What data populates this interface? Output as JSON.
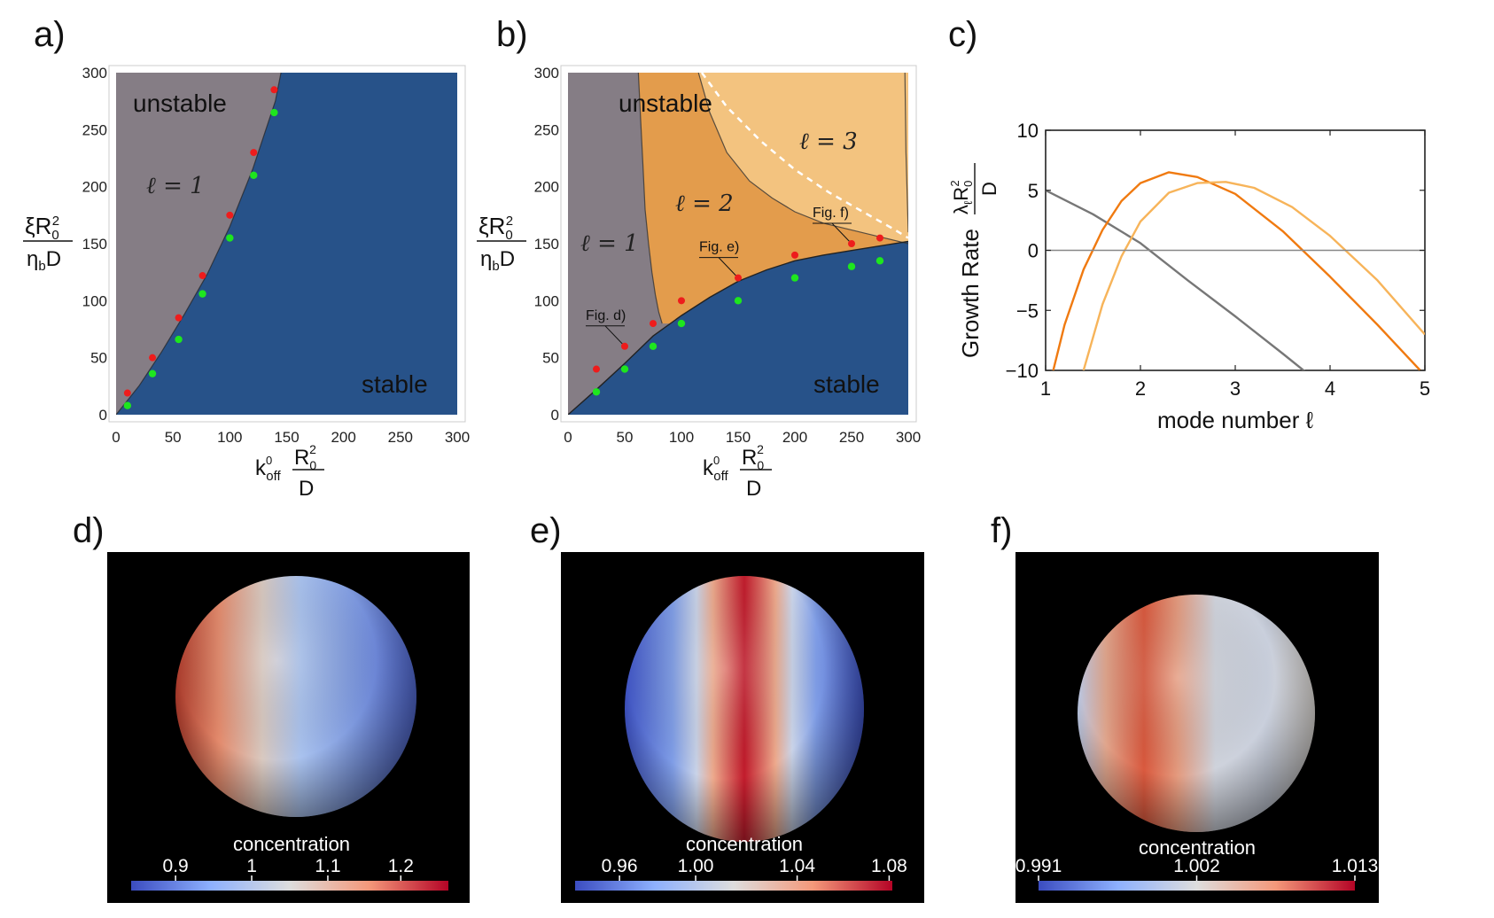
{
  "panels": {
    "a": "a)",
    "b": "b)",
    "c": "c)",
    "d": "d)",
    "e": "e)",
    "f": "f)"
  },
  "colors": {
    "unstable_l1": "#857d85",
    "unstable_l2": "#e39c4c",
    "unstable_l3": "#f3c37f",
    "stable": "#275289",
    "red_marker": "#ee1c1c",
    "green_marker": "#1ee61e",
    "l1_curve": "#777777",
    "l2_curve": "#f07a10",
    "l3_curve": "#f7b45a"
  },
  "chart_data": [
    {
      "type": "scatter",
      "panel": "a",
      "xlabel": {
        "k": "k",
        "sup": "0",
        "sub": "off",
        "num": "R",
        "num_sub": "0",
        "num_sup": "2",
        "den": "D"
      },
      "ylabel": {
        "num": "ξR",
        "num_sub": "0",
        "num_sup": "2",
        "den_main": "η",
        "den_sub": "b",
        "den_tail": "D"
      },
      "xlim": [
        0,
        300
      ],
      "ylim": [
        0,
        300
      ],
      "xticks": [
        "0",
        "50",
        "100",
        "150",
        "200",
        "250",
        "300"
      ],
      "yticks": [
        "0",
        "50",
        "100",
        "150",
        "200",
        "250",
        "300"
      ],
      "regions": {
        "unstable": "unstable",
        "stable": "stable",
        "mode": "ℓ = 1"
      },
      "boundary": {
        "x": [
          0,
          20,
          40,
          60,
          80,
          100,
          120,
          140,
          145
        ],
        "y": [
          0,
          25,
          55,
          88,
          123,
          165,
          215,
          275,
          300
        ]
      },
      "red_points": {
        "x": [
          10,
          32,
          55,
          76,
          100,
          121,
          139
        ],
        "y": [
          19,
          50,
          85,
          122,
          175,
          230,
          285
        ]
      },
      "green_points": {
        "x": [
          10,
          32,
          55,
          76,
          100,
          121,
          139
        ],
        "y": [
          8,
          36,
          66,
          106,
          155,
          210,
          265
        ]
      }
    },
    {
      "type": "scatter",
      "panel": "b",
      "xlabel": {
        "k": "k",
        "sup": "0",
        "sub": "off",
        "num": "R",
        "num_sub": "0",
        "num_sup": "2",
        "den": "D"
      },
      "ylabel": {
        "num": "ξR",
        "num_sub": "0",
        "num_sup": "2",
        "den_main": "η",
        "den_sub": "b",
        "den_tail": "D"
      },
      "xlim": [
        0,
        300
      ],
      "ylim": [
        0,
        300
      ],
      "xticks": [
        "0",
        "50",
        "100",
        "150",
        "200",
        "250",
        "300"
      ],
      "yticks": [
        "0",
        "50",
        "100",
        "150",
        "200",
        "250",
        "300"
      ],
      "regions": {
        "unstable": "unstable",
        "stable": "stable",
        "mode1": "ℓ = 1",
        "mode2": "ℓ = 2",
        "mode3": "ℓ = 3"
      },
      "stable_boundary": {
        "x": [
          0,
          25,
          50,
          75,
          100,
          125,
          150,
          175,
          200,
          225,
          250,
          275,
          300
        ],
        "y": [
          0,
          22,
          45,
          69,
          87,
          103,
          117,
          127,
          135,
          140,
          144,
          148,
          152
        ]
      },
      "l1_l2_boundary": {
        "x": [
          62,
          64,
          66,
          68,
          71,
          74,
          77,
          80,
          83
        ],
        "y": [
          300,
          260,
          220,
          180,
          150,
          125,
          105,
          90,
          80
        ]
      },
      "l2_l3_boundary": {
        "x": [
          115,
          125,
          140,
          160,
          180,
          200,
          225,
          250,
          275,
          300
        ],
        "y": [
          300,
          265,
          230,
          205,
          190,
          178,
          168,
          162,
          156,
          150
        ]
      },
      "l3_right_boundary": {
        "x": [
          297,
          298,
          300
        ],
        "y": [
          300,
          230,
          160
        ]
      },
      "dashed_boundary": {
        "x": [
          118,
          140,
          170,
          200,
          230,
          260,
          285,
          300
        ],
        "y": [
          300,
          270,
          240,
          215,
          195,
          178,
          164,
          155
        ]
      },
      "red_points": {
        "x": [
          25,
          50,
          75,
          100,
          150,
          200,
          250,
          275
        ],
        "y": [
          40,
          60,
          80,
          100,
          120,
          140,
          150,
          155
        ]
      },
      "green_points": {
        "x": [
          25,
          50,
          75,
          100,
          150,
          200,
          250,
          275
        ],
        "y": [
          20,
          40,
          60,
          80,
          100,
          120,
          130,
          135
        ]
      },
      "annotations": [
        {
          "text": "Fig. d)",
          "x": 50,
          "y": 60
        },
        {
          "text": "Fig. e)",
          "x": 150,
          "y": 120
        },
        {
          "text": "Fig. f)",
          "x": 250,
          "y": 150
        }
      ]
    },
    {
      "type": "line",
      "panel": "c",
      "xlabel": "mode number ℓ",
      "ylabel": {
        "prefix": "Growth Rate",
        "num": "λ",
        "num_sub": "ℓ",
        "num_tail": "R",
        "num_sub2": "0",
        "num_sup2": "2",
        "den": "D"
      },
      "xlim": [
        1,
        5
      ],
      "ylim": [
        -10,
        10
      ],
      "xticks": [
        "1",
        "2",
        "3",
        "4",
        "5"
      ],
      "yticks": [
        "−10",
        "−5",
        "0",
        "5",
        "10"
      ],
      "series": [
        {
          "color": "#777777",
          "x": [
            1.0,
            1.5,
            2.0,
            2.5,
            3.0,
            3.5,
            3.8
          ],
          "y": [
            5.0,
            3.0,
            0.6,
            -2.5,
            -5.5,
            -8.6,
            -10.5
          ]
        },
        {
          "color": "#f07a10",
          "x": [
            1.08,
            1.2,
            1.4,
            1.6,
            1.8,
            2.0,
            2.3,
            2.6,
            3.0,
            3.5,
            4.0,
            4.5,
            4.95
          ],
          "y": [
            -10.0,
            -6.2,
            -1.6,
            1.7,
            4.1,
            5.6,
            6.5,
            6.1,
            4.7,
            1.6,
            -2.2,
            -6.2,
            -10.0
          ]
        },
        {
          "color": "#f7b45a",
          "x": [
            1.4,
            1.6,
            1.8,
            2.0,
            2.3,
            2.6,
            2.9,
            3.2,
            3.6,
            4.0,
            4.5,
            5.0
          ],
          "y": [
            -10.0,
            -4.5,
            -0.5,
            2.4,
            4.8,
            5.6,
            5.7,
            5.2,
            3.6,
            1.2,
            -2.5,
            -7.0
          ]
        }
      ]
    }
  ],
  "spheres": [
    {
      "panel": "d",
      "title": "concentration",
      "ticks": [
        "0.9",
        "1",
        "1.1",
        "1.2"
      ],
      "tick_pos": [
        0.14,
        0.38,
        0.62,
        0.85
      ]
    },
    {
      "panel": "e",
      "title": "concentration",
      "ticks": [
        "0.96",
        "1.00",
        "1.04",
        "1.08"
      ],
      "tick_pos": [
        0.14,
        0.38,
        0.7,
        0.99
      ]
    },
    {
      "panel": "f",
      "title": "concentration",
      "ticks": [
        "0.991",
        "1.002",
        "1.013"
      ],
      "tick_pos": [
        0.0,
        0.5,
        1.0
      ]
    }
  ]
}
